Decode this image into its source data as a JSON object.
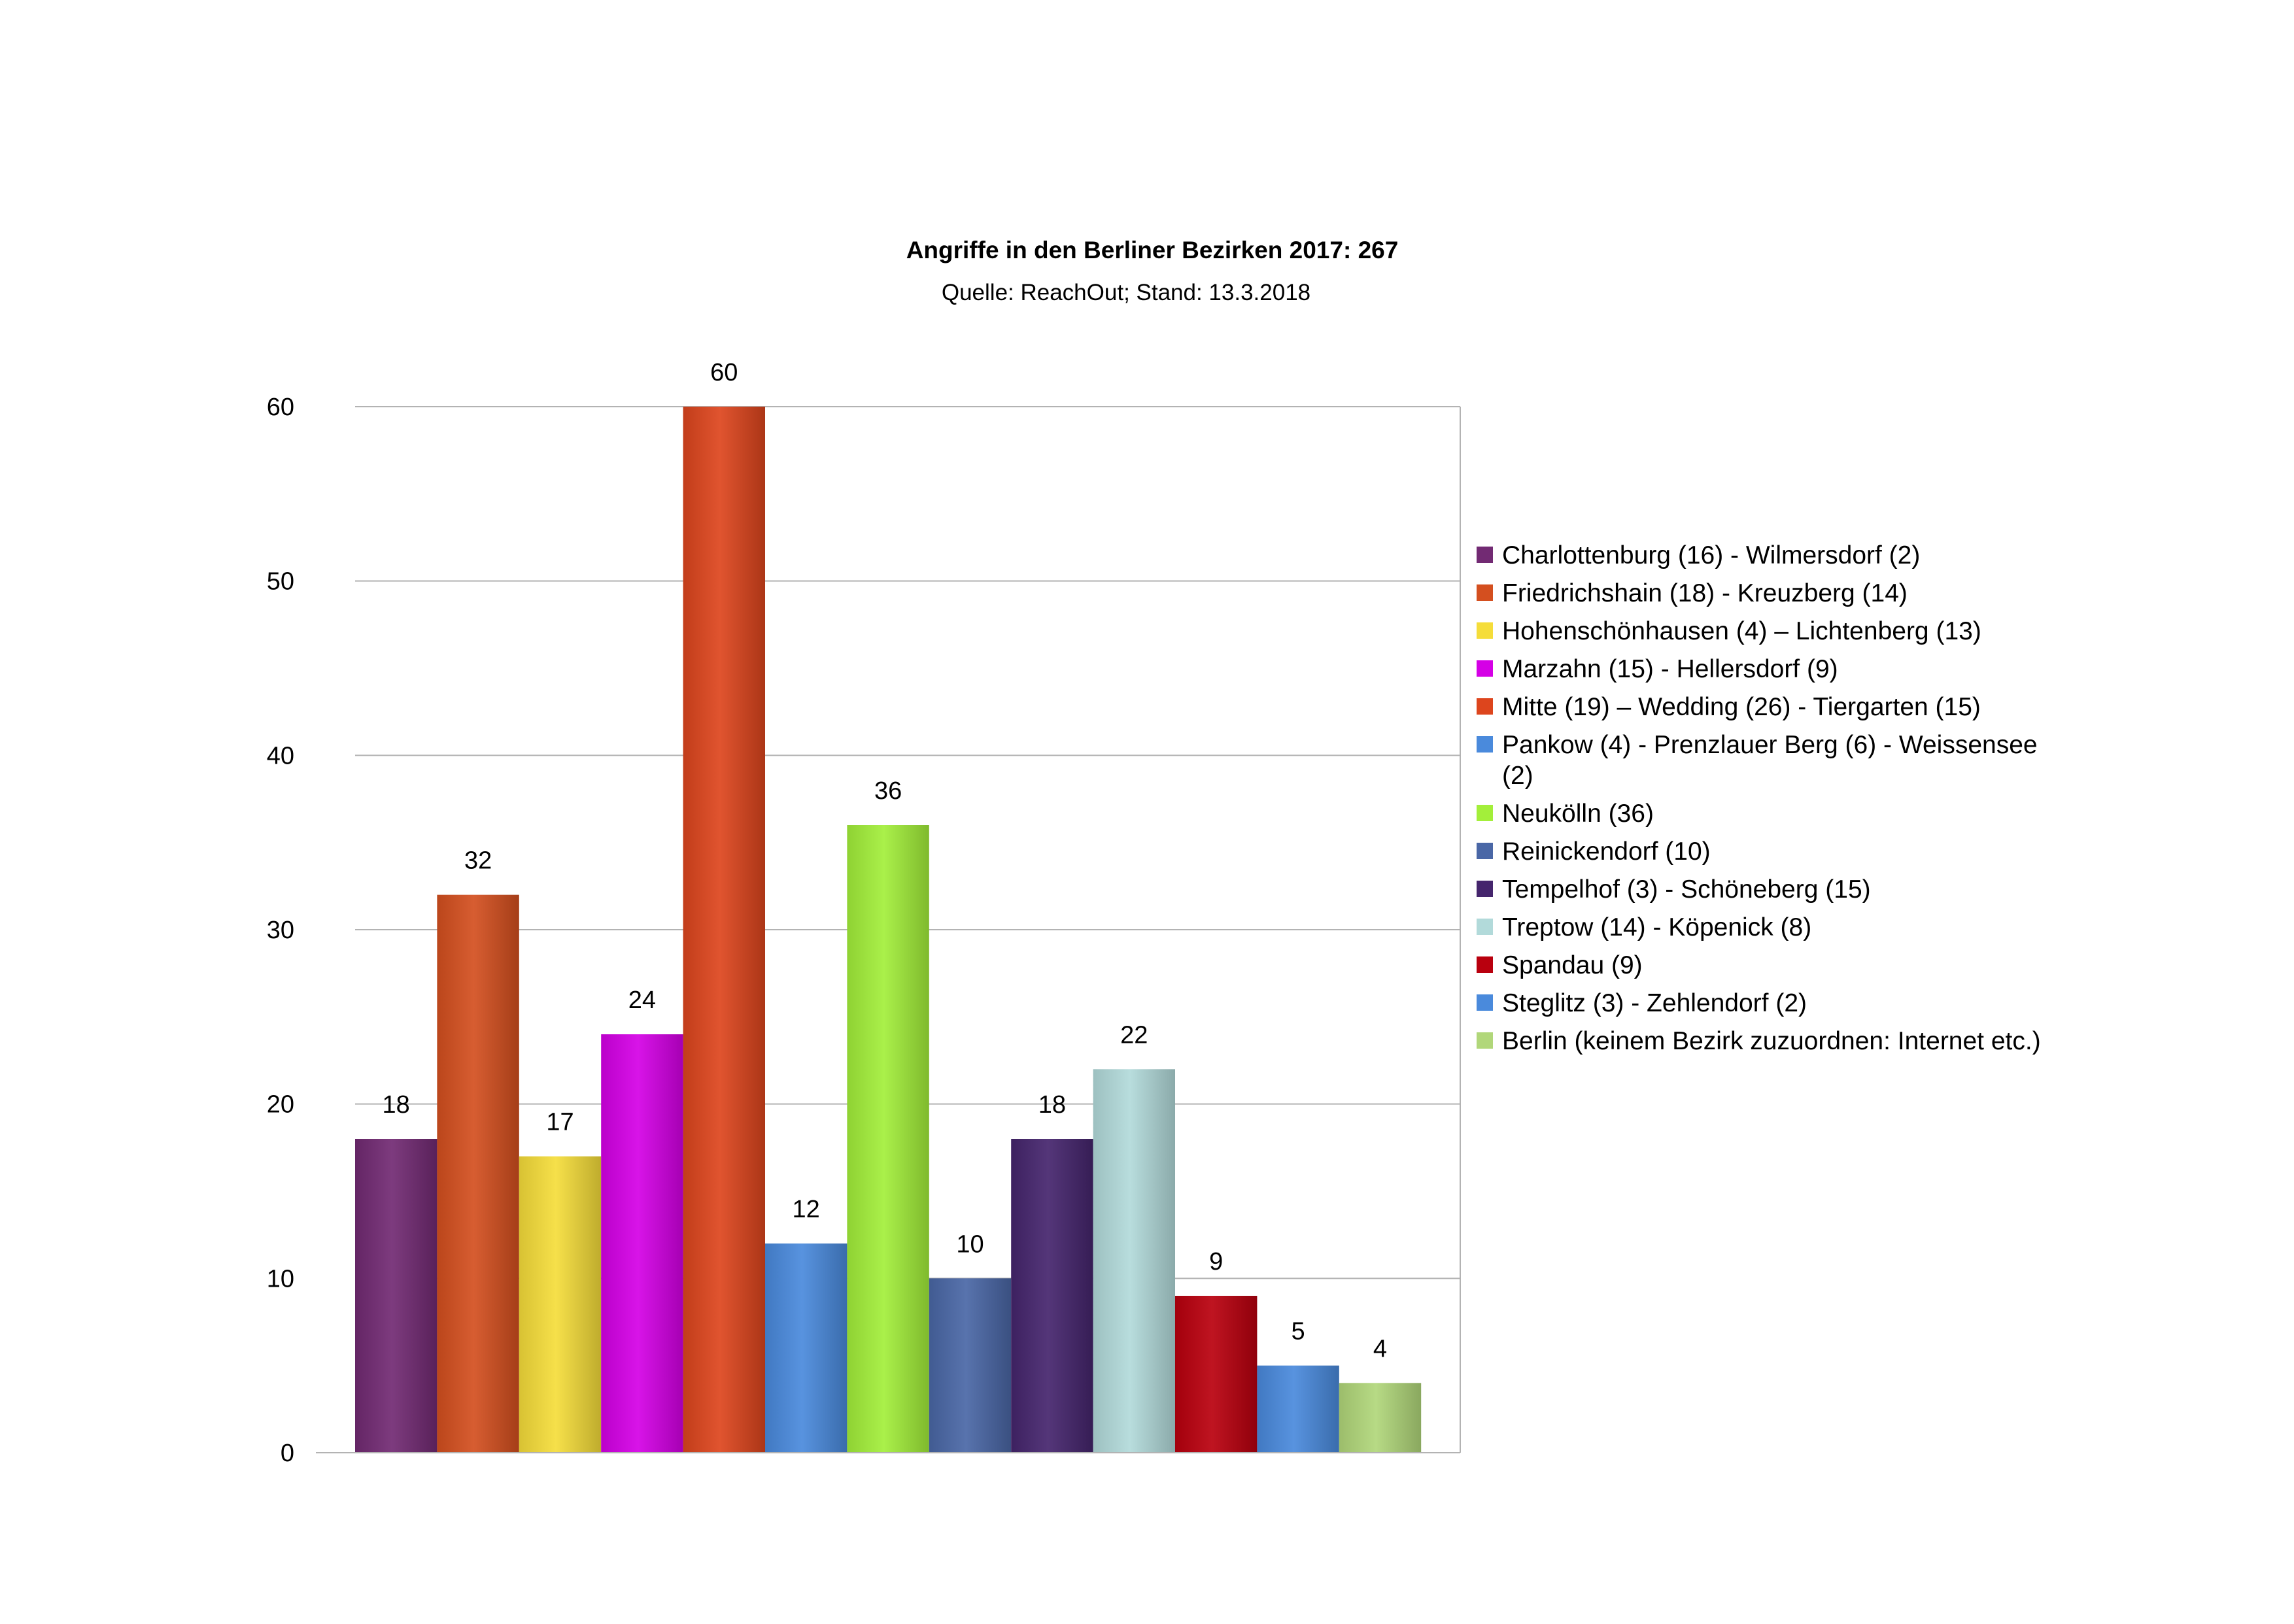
{
  "chart_data": {
    "type": "bar",
    "title": "Angriffe in den Berliner Bezirken 2017: 267",
    "subtitle": "Quelle: ReachOut; Stand: 13.3.2018",
    "xlabel": "",
    "ylabel": "",
    "ylim": [
      0,
      60
    ],
    "yticks": [
      "0",
      "10",
      "20",
      "30",
      "40",
      "50",
      "60"
    ],
    "grid": true,
    "legend_position": "right",
    "series": [
      {
        "name": "Charlottenburg (16) - Wilmersdorf (2)",
        "value": 18,
        "color": "#722a73"
      },
      {
        "name": "Friedrichshain (18) - Kreuzberg (14)",
        "value": 32,
        "color": "#d44f1f"
      },
      {
        "name": "Hohenschönhausen (4) – Lichtenberg (13)",
        "value": 17,
        "color": "#f5dd3a"
      },
      {
        "name": "Marzahn (15) - Hellersdorf (9)",
        "value": 24,
        "color": "#d500e6"
      },
      {
        "name": "Mitte (19) – Wedding (26) - Tiergarten (15)",
        "value": 60,
        "color": "#dd451d"
      },
      {
        "name": "Pankow (4) - Prenzlauer Berg (6) - Weissensee (2)",
        "value": 12,
        "color": "#4a8adc"
      },
      {
        "name": "Neukölln (36)",
        "value": 36,
        "color": "#a3ef3a"
      },
      {
        "name": "Reinickendorf (10)",
        "value": 10,
        "color": "#4a67a6"
      },
      {
        "name": "Tempelhof (3) - Schöneberg (15)",
        "value": 18,
        "color": "#45256d"
      },
      {
        "name": "Treptow (14) - Köpenick (8)",
        "value": 22,
        "color": "#b2dada"
      },
      {
        "name": "Spandau (9)",
        "value": 9,
        "color": "#b9000e"
      },
      {
        "name": "Steglitz (3) - Zehlendorf (2)",
        "value": 5,
        "color": "#4a8adc"
      },
      {
        "name": "Berlin (keinem Bezirk zuzuordnen: Internet etc.)",
        "value": 4,
        "color": "#b1d77a"
      }
    ]
  }
}
